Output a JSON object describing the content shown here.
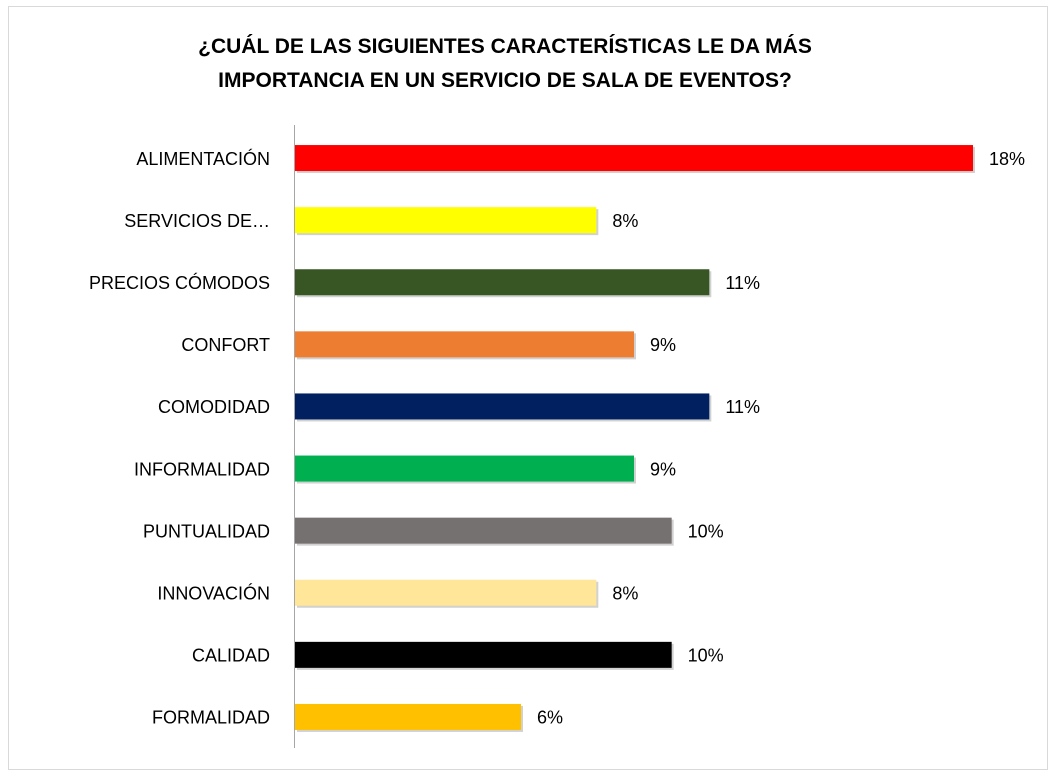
{
  "chart_data": {
    "type": "bar",
    "orientation": "horizontal",
    "title": "¿CUÁL DE LAS SIGUIENTES CARACTERÍSTICAS LE DA MÁS IMPORTANCIA EN UN SERVICIO DE SALA DE EVENTOS?",
    "categories": [
      "ALIMENTACIÓN",
      "SERVICIOS DE…",
      "PRECIOS CÓMODOS",
      "CONFORT",
      "COMODIDAD",
      "INFORMALIDAD",
      "PUNTUALIDAD",
      "INNOVACIÓN",
      "CALIDAD",
      "FORMALIDAD"
    ],
    "values": [
      18,
      8,
      11,
      9,
      11,
      9,
      10,
      8,
      10,
      6
    ],
    "value_labels": [
      "18%",
      "8%",
      "11%",
      "9%",
      "11%",
      "9%",
      "10%",
      "8%",
      "10%",
      "6%"
    ],
    "colors": [
      "#ff0000",
      "#ffff00",
      "#375623",
      "#ed7d31",
      "#002060",
      "#00b050",
      "#767171",
      "#ffe699",
      "#000000",
      "#ffc000"
    ]
  }
}
